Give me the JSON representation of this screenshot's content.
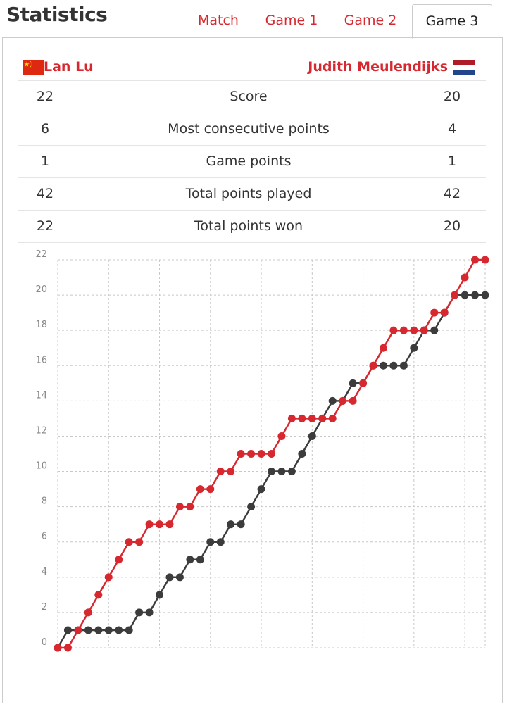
{
  "header": {
    "title": "Statistics",
    "tabs": [
      {
        "label": "Match",
        "active": false
      },
      {
        "label": "Game 1",
        "active": false
      },
      {
        "label": "Game 2",
        "active": false
      },
      {
        "label": "Game 3",
        "active": true
      }
    ]
  },
  "players": {
    "left": {
      "name": "Lan Lu",
      "flag": "china-flag"
    },
    "right": {
      "name": "Judith Meulendijks",
      "flag": "netherlands-flag"
    }
  },
  "stats": [
    {
      "label": "Score",
      "left": "22",
      "right": "20"
    },
    {
      "label": "Most consecutive points",
      "left": "6",
      "right": "4"
    },
    {
      "label": "Game points",
      "left": "1",
      "right": "1"
    },
    {
      "label": "Total points played",
      "left": "42",
      "right": "42"
    },
    {
      "label": "Total points won",
      "left": "22",
      "right": "20"
    }
  ],
  "colors": {
    "accent": "#d7282f",
    "series_left": "#d7282f",
    "series_right": "#3c3c3c"
  },
  "chart_data": {
    "type": "line",
    "x": [
      0,
      1,
      2,
      3,
      4,
      5,
      6,
      7,
      8,
      9,
      10,
      11,
      12,
      13,
      14,
      15,
      16,
      17,
      18,
      19,
      20,
      21,
      22,
      23,
      24,
      25,
      26,
      27,
      28,
      29,
      30,
      31,
      32,
      33,
      34,
      35,
      36,
      37,
      38,
      39,
      40,
      41,
      42
    ],
    "ylim": [
      0,
      22
    ],
    "yticks": [
      "0",
      "2",
      "4",
      "6",
      "8",
      "10",
      "12",
      "14",
      "16",
      "18",
      "20",
      "22"
    ],
    "grid": true,
    "series": [
      {
        "name": "Lan Lu",
        "color": "#d7282f",
        "values": [
          0,
          0,
          1,
          2,
          3,
          4,
          5,
          6,
          6,
          7,
          7,
          7,
          8,
          8,
          9,
          9,
          10,
          10,
          11,
          11,
          11,
          11,
          12,
          13,
          13,
          13,
          13,
          13,
          14,
          14,
          15,
          16,
          17,
          18,
          18,
          18,
          18,
          19,
          19,
          20,
          21,
          22,
          22
        ]
      },
      {
        "name": "Judith Meulendijks",
        "color": "#3c3c3c",
        "values": [
          0,
          1,
          1,
          1,
          1,
          1,
          1,
          1,
          2,
          2,
          3,
          4,
          4,
          5,
          5,
          6,
          6,
          7,
          7,
          8,
          9,
          10,
          10,
          10,
          11,
          12,
          13,
          14,
          14,
          15,
          15,
          16,
          16,
          16,
          16,
          17,
          18,
          18,
          19,
          20,
          20,
          20,
          20
        ]
      }
    ]
  }
}
